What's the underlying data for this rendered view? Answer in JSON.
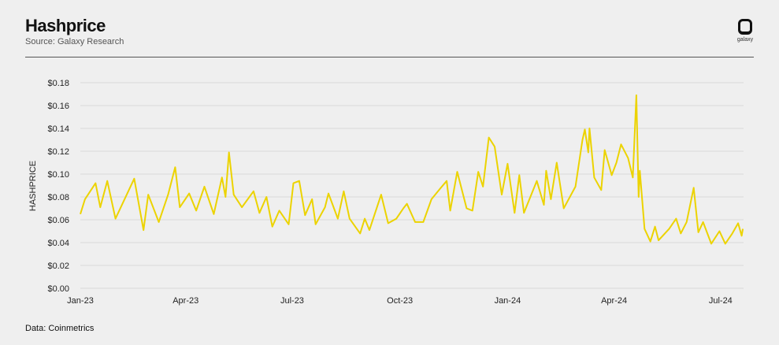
{
  "header": {
    "title": "Hashprice",
    "subtitle": "Source: Galaxy Research",
    "logo_text": "galaxy"
  },
  "footer": {
    "note": "Data: Coinmetrics"
  },
  "colors": {
    "line": "#ecd300",
    "background": "#efefef",
    "grid": "#dadada"
  },
  "chart_data": {
    "type": "line",
    "title": "Hashprice",
    "xlabel": "",
    "ylabel": "HASHPRICE",
    "ylim": [
      0,
      0.18
    ],
    "xlim": [
      "2023-01-01",
      "2024-07-20"
    ],
    "grid": true,
    "y_ticks": [
      "$0.00",
      "$0.02",
      "$0.04",
      "$0.06",
      "$0.08",
      "$0.10",
      "$0.12",
      "$0.14",
      "$0.16",
      "$0.18"
    ],
    "y_tick_values": [
      0,
      0.02,
      0.04,
      0.06,
      0.08,
      0.1,
      0.12,
      0.14,
      0.16,
      0.18
    ],
    "x_ticks": [
      {
        "label": "Jan-23",
        "date": "2023-01-01"
      },
      {
        "label": "Apr-23",
        "date": "2023-04-01"
      },
      {
        "label": "Jul-23",
        "date": "2023-07-01"
      },
      {
        "label": "Oct-23",
        "date": "2023-10-01"
      },
      {
        "label": "Jan-24",
        "date": "2024-01-01"
      },
      {
        "label": "Apr-24",
        "date": "2024-04-01"
      },
      {
        "label": "Jul-24",
        "date": "2024-07-01"
      }
    ],
    "series": [
      {
        "points": [
          [
            "2023-01-01",
            0.065
          ],
          [
            "2023-01-05",
            0.078
          ],
          [
            "2023-01-14",
            0.092
          ],
          [
            "2023-01-18",
            0.071
          ],
          [
            "2023-01-24",
            0.094
          ],
          [
            "2023-01-31",
            0.061
          ],
          [
            "2023-02-16",
            0.096
          ],
          [
            "2023-02-24",
            0.051
          ],
          [
            "2023-02-28",
            0.082
          ],
          [
            "2023-03-09",
            0.058
          ],
          [
            "2023-03-17",
            0.082
          ],
          [
            "2023-03-23",
            0.106
          ],
          [
            "2023-03-27",
            0.071
          ],
          [
            "2023-04-04",
            0.083
          ],
          [
            "2023-04-10",
            0.068
          ],
          [
            "2023-04-17",
            0.089
          ],
          [
            "2023-04-25",
            0.065
          ],
          [
            "2023-05-02",
            0.097
          ],
          [
            "2023-05-05",
            0.08
          ],
          [
            "2023-05-08",
            0.119
          ],
          [
            "2023-05-12",
            0.082
          ],
          [
            "2023-05-19",
            0.071
          ],
          [
            "2023-05-29",
            0.085
          ],
          [
            "2023-06-03",
            0.066
          ],
          [
            "2023-06-09",
            0.08
          ],
          [
            "2023-06-14",
            0.054
          ],
          [
            "2023-06-20",
            0.068
          ],
          [
            "2023-06-28",
            0.056
          ],
          [
            "2023-07-02",
            0.092
          ],
          [
            "2023-07-07",
            0.094
          ],
          [
            "2023-07-12",
            0.064
          ],
          [
            "2023-07-18",
            0.078
          ],
          [
            "2023-07-21",
            0.056
          ],
          [
            "2023-07-29",
            0.071
          ],
          [
            "2023-08-01",
            0.083
          ],
          [
            "2023-08-09",
            0.061
          ],
          [
            "2023-08-14",
            0.085
          ],
          [
            "2023-08-19",
            0.061
          ],
          [
            "2023-08-28",
            0.048
          ],
          [
            "2023-09-01",
            0.061
          ],
          [
            "2023-09-05",
            0.051
          ],
          [
            "2023-09-15",
            0.082
          ],
          [
            "2023-09-21",
            0.057
          ],
          [
            "2023-09-28",
            0.061
          ],
          [
            "2023-10-04",
            0.07
          ],
          [
            "2023-10-07",
            0.074
          ],
          [
            "2023-10-14",
            0.058
          ],
          [
            "2023-10-21",
            0.058
          ],
          [
            "2023-10-28",
            0.078
          ],
          [
            "2023-11-05",
            0.088
          ],
          [
            "2023-11-10",
            0.094
          ],
          [
            "2023-11-13",
            0.068
          ],
          [
            "2023-11-19",
            0.102
          ],
          [
            "2023-11-27",
            0.07
          ],
          [
            "2023-12-02",
            0.068
          ],
          [
            "2023-12-07",
            0.102
          ],
          [
            "2023-12-11",
            0.089
          ],
          [
            "2023-12-16",
            0.132
          ],
          [
            "2023-12-21",
            0.124
          ],
          [
            "2023-12-27",
            0.082
          ],
          [
            "2024-01-01",
            0.109
          ],
          [
            "2024-01-07",
            0.066
          ],
          [
            "2024-01-11",
            0.099
          ],
          [
            "2024-01-15",
            0.066
          ],
          [
            "2024-01-26",
            0.094
          ],
          [
            "2024-02-01",
            0.073
          ],
          [
            "2024-02-03",
            0.103
          ],
          [
            "2024-02-07",
            0.078
          ],
          [
            "2024-02-12",
            0.11
          ],
          [
            "2024-02-18",
            0.07
          ],
          [
            "2024-02-28",
            0.089
          ],
          [
            "2024-03-05",
            0.13
          ],
          [
            "2024-03-07",
            0.139
          ],
          [
            "2024-03-10",
            0.119
          ],
          [
            "2024-03-11",
            0.14
          ],
          [
            "2024-03-15",
            0.097
          ],
          [
            "2024-03-21",
            0.086
          ],
          [
            "2024-03-24",
            0.121
          ],
          [
            "2024-03-30",
            0.099
          ],
          [
            "2024-04-03",
            0.11
          ],
          [
            "2024-04-07",
            0.126
          ],
          [
            "2024-04-13",
            0.114
          ],
          [
            "2024-04-17",
            0.097
          ],
          [
            "2024-04-20",
            0.169
          ],
          [
            "2024-04-22",
            0.08
          ],
          [
            "2024-04-23",
            0.103
          ],
          [
            "2024-04-27",
            0.052
          ],
          [
            "2024-05-02",
            0.041
          ],
          [
            "2024-05-06",
            0.054
          ],
          [
            "2024-05-09",
            0.042
          ],
          [
            "2024-05-18",
            0.052
          ],
          [
            "2024-05-24",
            0.061
          ],
          [
            "2024-05-28",
            0.048
          ],
          [
            "2024-06-02",
            0.058
          ],
          [
            "2024-06-08",
            0.088
          ],
          [
            "2024-06-12",
            0.049
          ],
          [
            "2024-06-16",
            0.058
          ],
          [
            "2024-06-23",
            0.039
          ],
          [
            "2024-06-30",
            0.05
          ],
          [
            "2024-07-05",
            0.039
          ],
          [
            "2024-07-11",
            0.048
          ],
          [
            "2024-07-16",
            0.057
          ],
          [
            "2024-07-19",
            0.046
          ],
          [
            "2024-07-20",
            0.052
          ]
        ]
      }
    ]
  }
}
